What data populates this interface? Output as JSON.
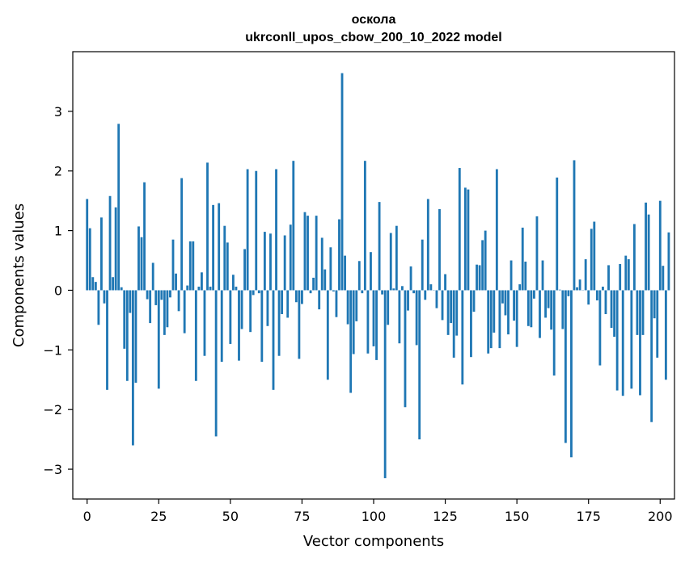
{
  "chart_data": {
    "type": "bar",
    "title": "оскола",
    "subtitle": "ukrconll_upos_cbow_200_10_2022 model",
    "xlabel": "Vector components",
    "ylabel": "Components values",
    "xlim": [
      -5,
      205
    ],
    "ylim": [
      -3.5,
      4.0
    ],
    "xticks": [
      0,
      25,
      50,
      75,
      100,
      125,
      150,
      175,
      200
    ],
    "yticks": [
      -3,
      -2,
      -1,
      0,
      1,
      2,
      3
    ],
    "ytick_labels": [
      "−3",
      "−2",
      "−1",
      "0",
      "1",
      "2",
      "3"
    ],
    "bar_width": 0.8,
    "bar_color": "#1f77b4",
    "grid": false,
    "values": [
      1.53,
      1.04,
      0.22,
      0.14,
      -0.58,
      1.22,
      -0.22,
      -1.67,
      1.58,
      0.22,
      1.39,
      2.79,
      0.05,
      -0.98,
      -1.52,
      -0.38,
      -2.6,
      -1.55,
      1.07,
      0.89,
      1.81,
      -0.15,
      -0.55,
      0.46,
      -0.25,
      -1.65,
      -0.16,
      -0.75,
      -0.62,
      -0.12,
      0.85,
      0.28,
      -0.35,
      1.88,
      -0.72,
      0.08,
      0.82,
      0.82,
      -1.52,
      0.06,
      0.3,
      -1.1,
      2.14,
      0.06,
      1.43,
      -2.45,
      1.46,
      -1.2,
      1.08,
      0.8,
      -0.9,
      0.26,
      0.06,
      -1.18,
      -0.65,
      0.69,
      2.03,
      -0.7,
      -0.08,
      2.0,
      -0.05,
      -1.2,
      0.98,
      -0.6,
      0.95,
      -1.67,
      2.03,
      -1.1,
      -0.4,
      0.92,
      -0.46,
      1.1,
      2.17,
      -0.2,
      -1.15,
      -0.23,
      1.31,
      1.25,
      -0.05,
      0.21,
      1.25,
      -0.32,
      0.88,
      0.35,
      -1.5,
      0.72,
      -0.02,
      -0.45,
      1.19,
      3.64,
      0.58,
      -0.57,
      -1.72,
      -1.07,
      -0.52,
      0.49,
      -0.05,
      2.17,
      -1.06,
      0.64,
      -0.94,
      -1.17,
      1.48,
      -0.07,
      -3.15,
      -0.58,
      0.96,
      0.03,
      1.08,
      -0.89,
      0.07,
      -1.96,
      -0.34,
      0.4,
      -0.05,
      -0.92,
      -2.5,
      0.85,
      -0.16,
      1.53,
      0.1,
      0.0,
      -0.3,
      1.36,
      -0.5,
      0.27,
      -0.75,
      -0.55,
      -1.13,
      -0.76,
      2.05,
      -1.58,
      1.72,
      1.69,
      -1.12,
      -0.36,
      0.43,
      0.42,
      0.84,
      1.0,
      -1.06,
      -0.97,
      -0.71,
      2.03,
      -0.97,
      -0.22,
      -0.42,
      -0.74,
      0.5,
      -0.51,
      -0.95,
      0.1,
      1.05,
      0.48,
      -0.6,
      -0.62,
      -0.14,
      1.24,
      -0.8,
      0.5,
      -0.46,
      -0.3,
      -0.66,
      -1.43,
      1.89,
      0.01,
      -0.65,
      -2.56,
      -0.1,
      -2.8,
      2.18,
      0.05,
      0.18,
      0.0,
      0.52,
      -0.24,
      1.03,
      1.15,
      -0.17,
      -1.26,
      0.06,
      -0.4,
      0.42,
      -0.63,
      -0.78,
      -1.68,
      0.44,
      -1.77,
      0.58,
      0.52,
      -1.65,
      1.11,
      -0.75,
      -1.76,
      -0.75,
      1.47,
      1.27,
      -2.21,
      -0.47,
      -1.13,
      1.5,
      0.41,
      -1.5,
      0.97
    ]
  }
}
